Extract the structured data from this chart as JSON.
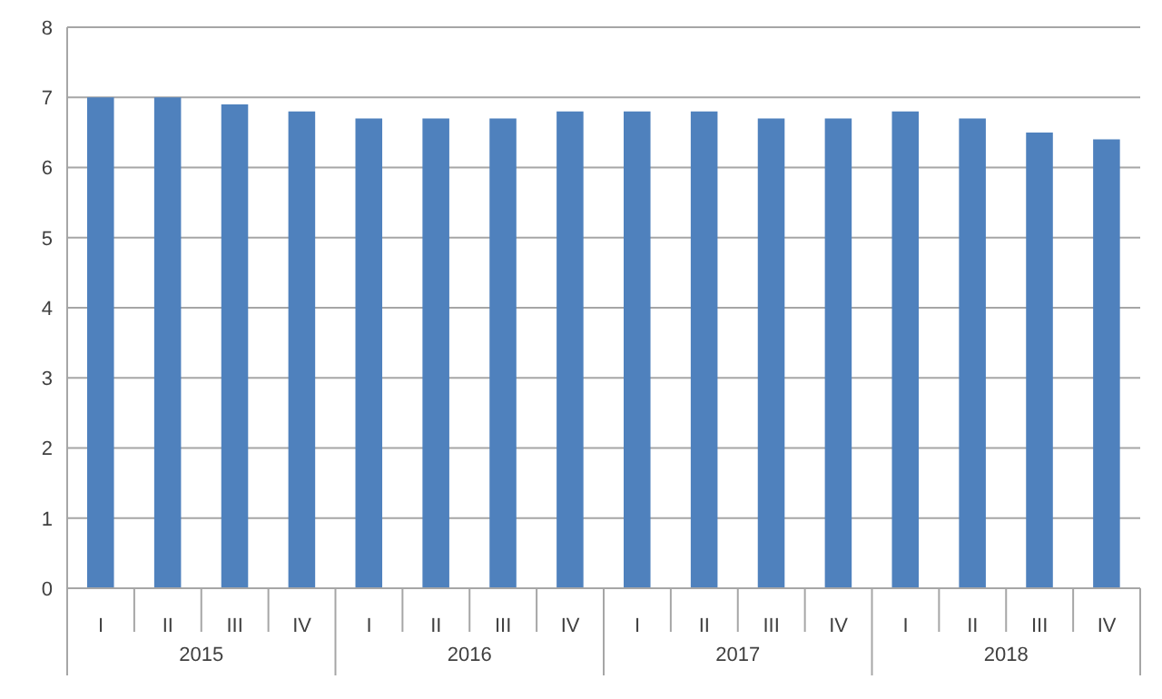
{
  "chart_data": {
    "type": "bar",
    "categories": [
      "I",
      "II",
      "III",
      "IV",
      "I",
      "II",
      "III",
      "IV",
      "I",
      "II",
      "III",
      "IV",
      "I",
      "II",
      "III",
      "IV"
    ],
    "values": [
      7.0,
      7.0,
      6.9,
      6.8,
      6.7,
      6.7,
      6.7,
      6.8,
      6.8,
      6.8,
      6.7,
      6.7,
      6.8,
      6.7,
      6.5,
      6.4
    ],
    "color": "#4f81bd",
    "annotations": [
      "2015",
      "2016",
      "2017",
      "2018"
    ],
    "ylim": [
      0,
      8
    ],
    "yticks": [
      0,
      1,
      2,
      3,
      4,
      5,
      6,
      7,
      8
    ],
    "grid": "y",
    "legend": false
  }
}
